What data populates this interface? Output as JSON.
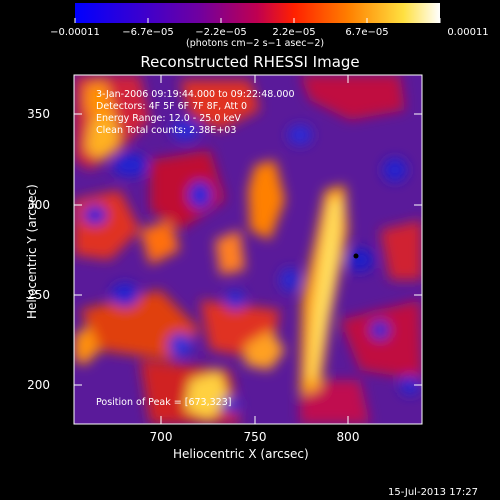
{
  "colorbar": {
    "tick_labels": [
      "−0.00011",
      "−6.7e−05",
      "−2.2e−05",
      "2.2e−05",
      "6.7e−05",
      "0.00011"
    ],
    "unit_label": "(photons cm−2 s−1 asec−2)",
    "colors": [
      "#0000ff",
      "#6a00b8",
      "#c0006a",
      "#ff3000",
      "#ffa000",
      "#ffff80",
      "#ffffff"
    ]
  },
  "title": "Reconstructed RHESSI Image",
  "info": {
    "line1": "3-Jan-2006 09:19:44.000 to 09:22:48.000",
    "line2": "Detectors: 4F 5F 6F 7F 8F, Att 0",
    "line3": "Energy Range: 12.0 - 25.0 keV",
    "line4": "Clean   Total counts: 2.38E+03",
    "peak": "Position of Peak = [673,323]"
  },
  "axes": {
    "xlabel": "Heliocentric X (arcsec)",
    "ylabel": "Heliocentric Y (arcsec)",
    "xticks": [
      "700",
      "750",
      "800"
    ],
    "yticks": [
      "350",
      "300",
      "250",
      "200"
    ]
  },
  "timestamp": "15-Jul-2013 17:27"
}
